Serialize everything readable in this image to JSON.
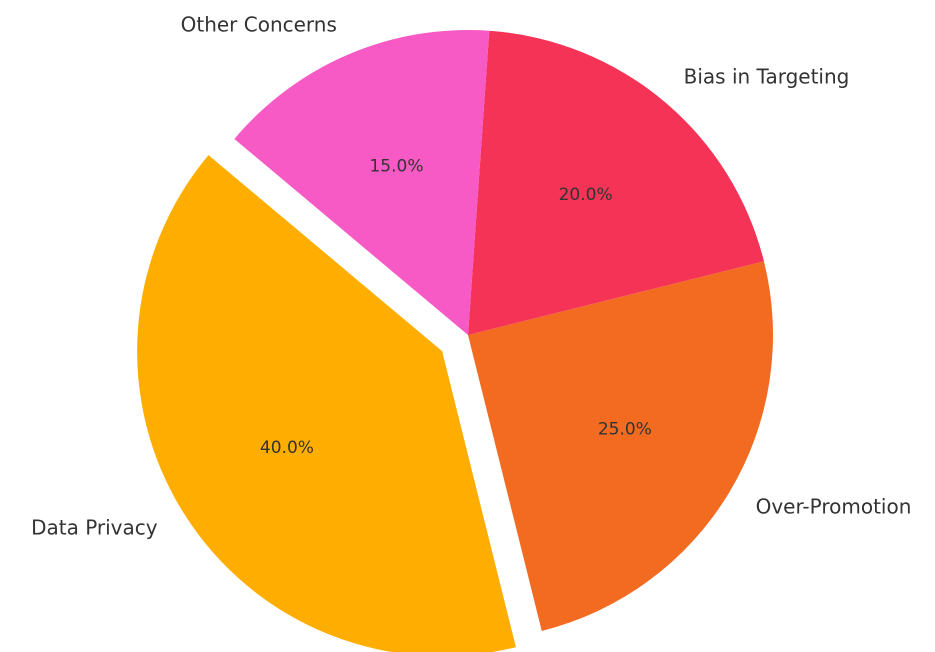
{
  "chart_data": {
    "type": "pie",
    "categories": [
      "Data Privacy",
      "Over-Promotion",
      "Bias in Targeting",
      "Other Concerns"
    ],
    "values": [
      40,
      25,
      20,
      15
    ],
    "value_labels": [
      "40.0%",
      "25.0%",
      "20.0%",
      "15.0%"
    ],
    "colors": [
      "#ffae00",
      "#f26b21",
      "#f43357",
      "#f75ac4"
    ],
    "explode": [
      0.1,
      0,
      0,
      0
    ]
  }
}
